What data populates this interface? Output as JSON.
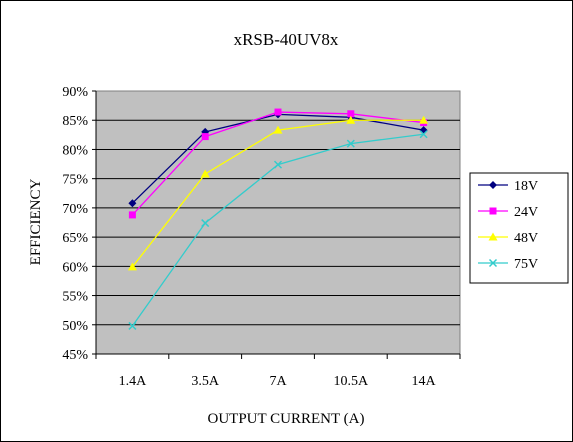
{
  "chart_data": {
    "type": "line",
    "title": "xRSB-40UV8x",
    "xlabel": "OUTPUT CURRENT (A)",
    "ylabel": "EFFICIENCY",
    "categories": [
      "1.4A",
      "3.5A",
      "7A",
      "10.5A",
      "14A"
    ],
    "ylim": [
      45,
      90
    ],
    "yticks": [
      "45%",
      "50%",
      "55%",
      "60%",
      "65%",
      "70%",
      "75%",
      "80%",
      "85%",
      "90%"
    ],
    "grid": true,
    "plot_background": "#c0c0c0",
    "legend_position": "right",
    "series": [
      {
        "name": "18V",
        "values": [
          70.8,
          83.0,
          86.0,
          85.5,
          83.3
        ],
        "color": "#000080",
        "marker": "diamond"
      },
      {
        "name": "24V",
        "values": [
          68.8,
          82.2,
          86.4,
          86.1,
          84.6
        ],
        "color": "#ff00ff",
        "marker": "square"
      },
      {
        "name": "48V",
        "values": [
          59.9,
          75.8,
          83.3,
          85.0,
          85.0
        ],
        "color": "#ffff00",
        "marker": "triangle"
      },
      {
        "name": "75V",
        "values": [
          49.8,
          67.4,
          77.4,
          81.0,
          82.6
        ],
        "color": "#33cccc",
        "marker": "x"
      }
    ]
  }
}
